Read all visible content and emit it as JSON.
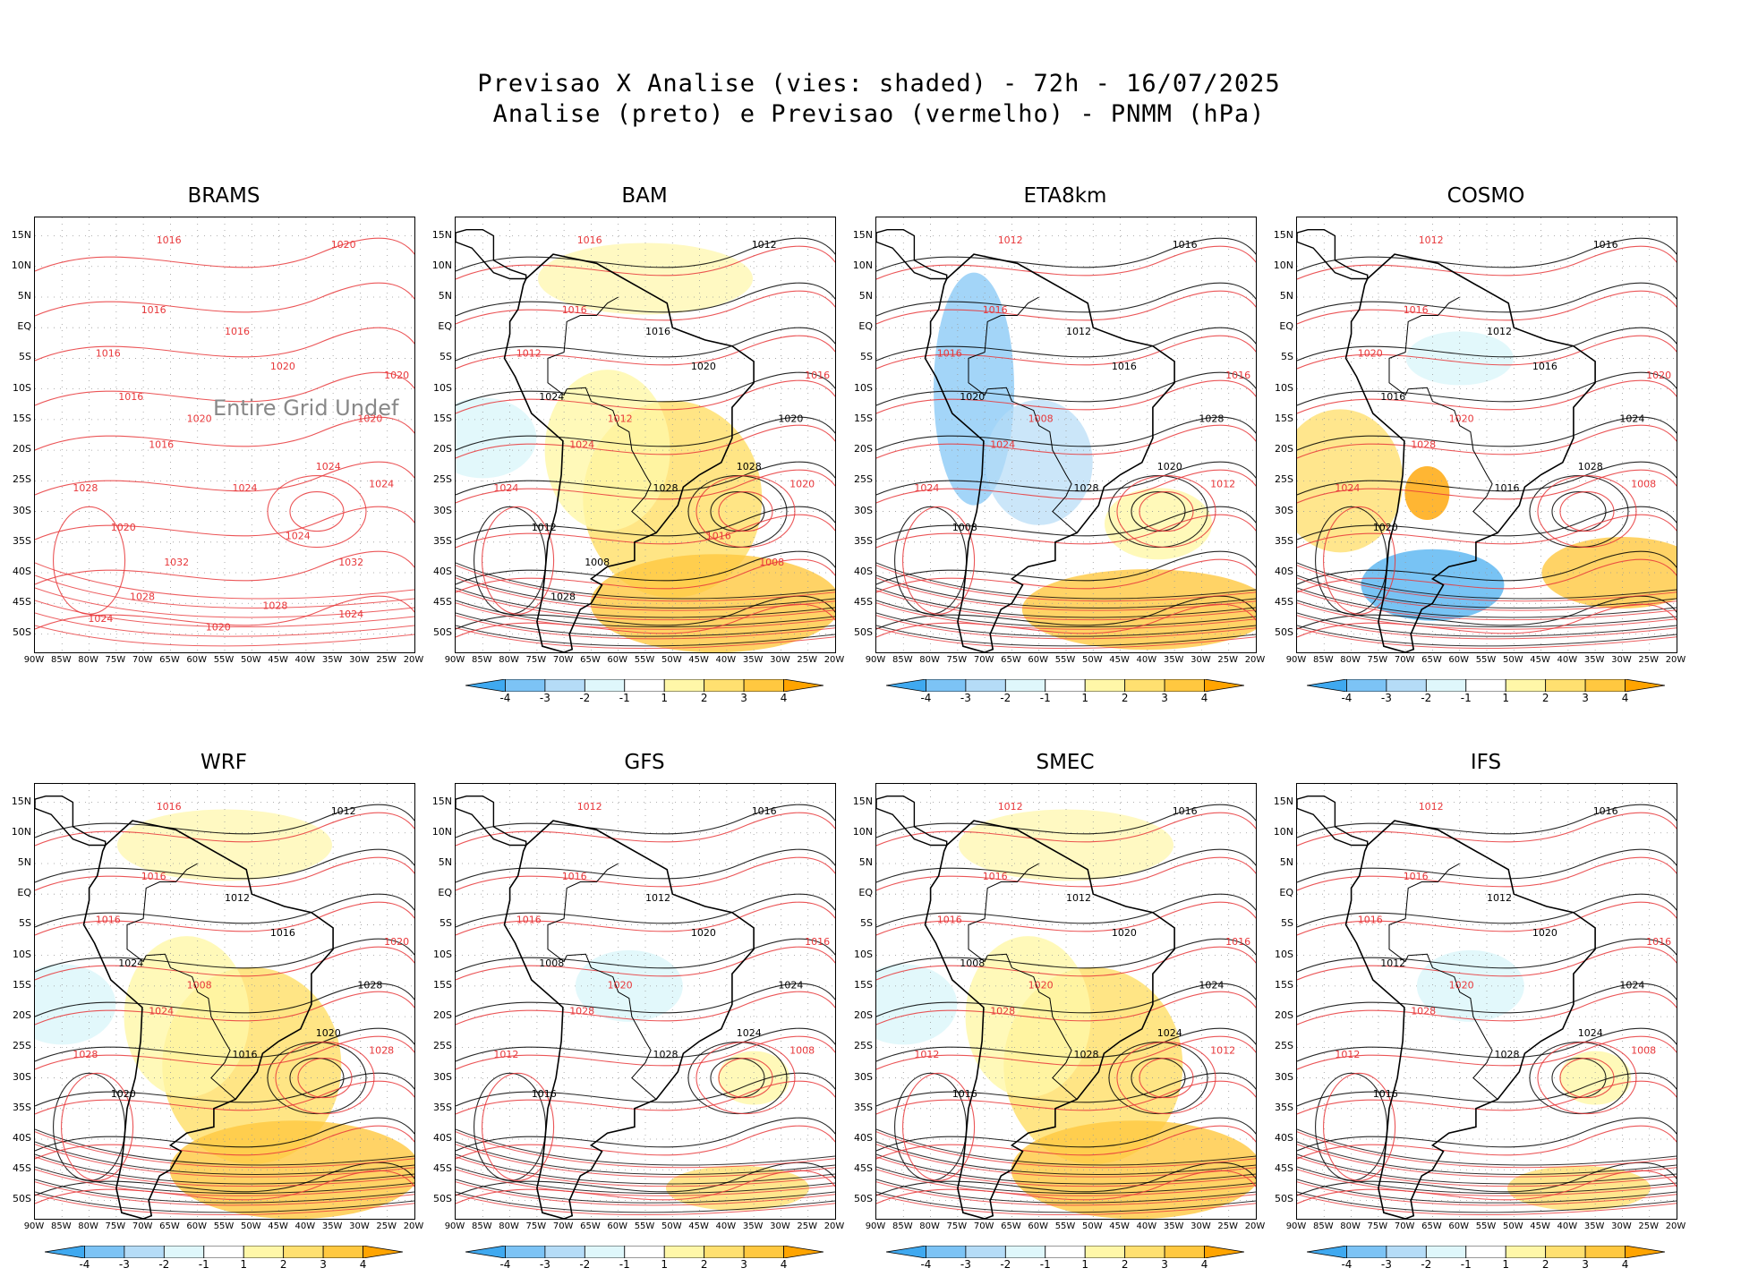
{
  "title": {
    "line1": "Previsao X Analise (vies: shaded) - 72h - 16/07/2025",
    "line2": "Analise (preto) e Previsao (vermelho) - PNMM (hPa)"
  },
  "lat_labels": [
    "15N",
    "10N",
    "5N",
    "EQ",
    "5S",
    "10S",
    "15S",
    "20S",
    "25S",
    "30S",
    "35S",
    "40S",
    "45S",
    "50S"
  ],
  "lon_labels": [
    "90W",
    "85W",
    "80W",
    "75W",
    "70W",
    "65W",
    "60W",
    "55W",
    "50W",
    "45W",
    "40W",
    "35W",
    "30W",
    "25W",
    "20W"
  ],
  "colorbar": {
    "labels": [
      "-4",
      "-3",
      "-2",
      "-1",
      "1",
      "2",
      "3",
      "4"
    ],
    "colors": [
      "#3fa9f0",
      "#7cc3f5",
      "#b5dcf7",
      "#dff7fb",
      "#ffffff",
      "#fff7a8",
      "#ffe070",
      "#ffc840",
      "#ffa400"
    ]
  },
  "colors": {
    "analysis": "#000000",
    "forecast": "#e8373a",
    "grid": "#999999"
  },
  "panels": [
    {
      "name": "BRAMS",
      "undef": "Entire Grid Undef",
      "has_colorbar": false,
      "bias": "none",
      "contours": [
        "1016",
        "1020",
        "1016",
        "1016",
        "1016",
        "1020",
        "1020",
        "1016",
        "1020",
        "1020",
        "1016",
        "1024",
        "1028",
        "1024",
        "1024",
        "1020",
        "1024",
        "1032",
        "1032",
        "1028",
        "1028",
        "1024",
        "1020",
        "1024"
      ]
    },
    {
      "name": "BAM",
      "undef": "",
      "has_colorbar": true,
      "bias": "positive",
      "contours": [
        "1016",
        "1012",
        "1016",
        "1016",
        "1012",
        "1020",
        "1016",
        "1024",
        "1012",
        "1020",
        "1024",
        "1028",
        "1024",
        "1028",
        "1020",
        "1012",
        "1016",
        "1008",
        "1008",
        "1028"
      ]
    },
    {
      "name": "ETA8km",
      "undef": "",
      "has_colorbar": true,
      "bias": "negative",
      "contours": [
        "1012",
        "1016",
        "1016",
        "1012",
        "1016",
        "1016",
        "1016",
        "1020",
        "1008",
        "1028",
        "1024",
        "1020",
        "1024",
        "1028",
        "1012",
        "1008"
      ]
    },
    {
      "name": "COSMO",
      "undef": "",
      "has_colorbar": true,
      "bias": "mixed",
      "contours": [
        "1012",
        "1016",
        "1016",
        "1012",
        "1020",
        "1016",
        "1020",
        "1016",
        "1020",
        "1024",
        "1028",
        "1028",
        "1024",
        "1016",
        "1008",
        "1020"
      ]
    },
    {
      "name": "WRF",
      "undef": "",
      "has_colorbar": true,
      "bias": "positive",
      "contours": [
        "1016",
        "1012",
        "1016",
        "1012",
        "1016",
        "1016",
        "1020",
        "1024",
        "1008",
        "1028",
        "1024",
        "1020",
        "1028",
        "1016",
        "1028",
        "1020"
      ]
    },
    {
      "name": "GFS",
      "undef": "",
      "has_colorbar": true,
      "bias": "weak",
      "contours": [
        "1012",
        "1016",
        "1016",
        "1012",
        "1016",
        "1020",
        "1016",
        "1008",
        "1020",
        "1024",
        "1028",
        "1024",
        "1012",
        "1028",
        "1008",
        "1016"
      ]
    },
    {
      "name": "SMEC",
      "undef": "",
      "has_colorbar": true,
      "bias": "positive",
      "contours": [
        "1012",
        "1016",
        "1016",
        "1012",
        "1016",
        "1020",
        "1016",
        "1008",
        "1020",
        "1024",
        "1028",
        "1024",
        "1012",
        "1028",
        "1012",
        "1016"
      ]
    },
    {
      "name": "IFS",
      "undef": "",
      "has_colorbar": true,
      "bias": "weak",
      "contours": [
        "1012",
        "1016",
        "1016",
        "1012",
        "1016",
        "1020",
        "1016",
        "1012",
        "1020",
        "1024",
        "1028",
        "1024",
        "1012",
        "1028",
        "1008",
        "1016"
      ]
    }
  ]
}
